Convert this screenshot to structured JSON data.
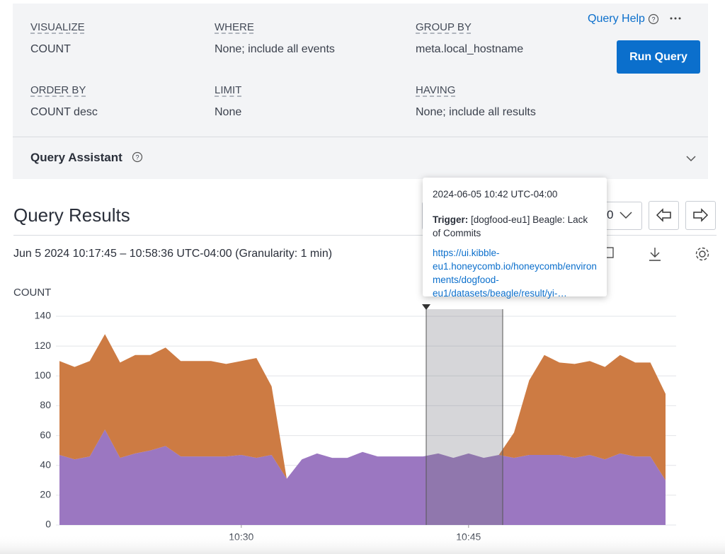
{
  "query": {
    "fields": [
      {
        "label": "VISUALIZE",
        "value": "COUNT"
      },
      {
        "label": "WHERE",
        "value": "None; include all events"
      },
      {
        "label": "GROUP BY",
        "value": "meta.local_hostname"
      },
      {
        "label": "ORDER BY",
        "value": "COUNT desc"
      },
      {
        "label": "LIMIT",
        "value": "None"
      },
      {
        "label": "HAVING",
        "value": "None; include all results"
      }
    ],
    "help": "Query Help",
    "run": "Run Query",
    "assistant": "Query Assistant"
  },
  "results": {
    "title": "Query Results",
    "range": "Jun 5 2024 10:17:45 – 10:58:36 UTC-04:00 (Granularity: 1 min)",
    "dropdown": "0"
  },
  "tooltip": {
    "time": "2024-06-05 10:42 UTC-04:00",
    "trigger_label": "Trigger:",
    "trigger": "[dogfood-eu1] Beagle: Lack of Commits",
    "link": "https://ui.kibble-eu1.honeycomb.io/honeycomb/environments/dogfood-eu1/datasets/beagle/result/yi-…"
  },
  "chart_data": {
    "type": "area",
    "stacked": true,
    "y_label": "COUNT",
    "x": [
      "10:18",
      "10:19",
      "10:20",
      "10:21",
      "10:22",
      "10:23",
      "10:24",
      "10:25",
      "10:26",
      "10:27",
      "10:28",
      "10:29",
      "10:30",
      "10:31",
      "10:32",
      "10:33",
      "10:34",
      "10:35",
      "10:36",
      "10:37",
      "10:38",
      "10:39",
      "10:40",
      "10:41",
      "10:42",
      "10:43",
      "10:44",
      "10:45",
      "10:46",
      "10:47",
      "10:48",
      "10:49",
      "10:50",
      "10:51",
      "10:52",
      "10:53",
      "10:54",
      "10:55",
      "10:56",
      "10:57",
      "10:58"
    ],
    "series": [
      {
        "color": "#9b77c1",
        "values": [
          47,
          44,
          46,
          64,
          45,
          48,
          50,
          53,
          46,
          46,
          46,
          46,
          47,
          45,
          47,
          31,
          44,
          48,
          45,
          45,
          49,
          46,
          46,
          46,
          46,
          48,
          45,
          48,
          45,
          47,
          45,
          47,
          47,
          47,
          45,
          47,
          44,
          48,
          46,
          46,
          30
        ]
      },
      {
        "color": "#cd7b43",
        "values": [
          63,
          62,
          64,
          64,
          64,
          66,
          64,
          66,
          64,
          64,
          64,
          62,
          63,
          67,
          46,
          0,
          0,
          0,
          0,
          0,
          0,
          0,
          0,
          0,
          0,
          0,
          0,
          0,
          0,
          0,
          17,
          50,
          67,
          62,
          63,
          63,
          62,
          66,
          63,
          63,
          58
        ]
      }
    ],
    "ylim": [
      0,
      140
    ],
    "yticks": [
      0,
      20,
      40,
      60,
      80,
      100,
      120,
      140
    ],
    "xticks": [
      "10:30",
      "10:45"
    ],
    "grid": true
  }
}
